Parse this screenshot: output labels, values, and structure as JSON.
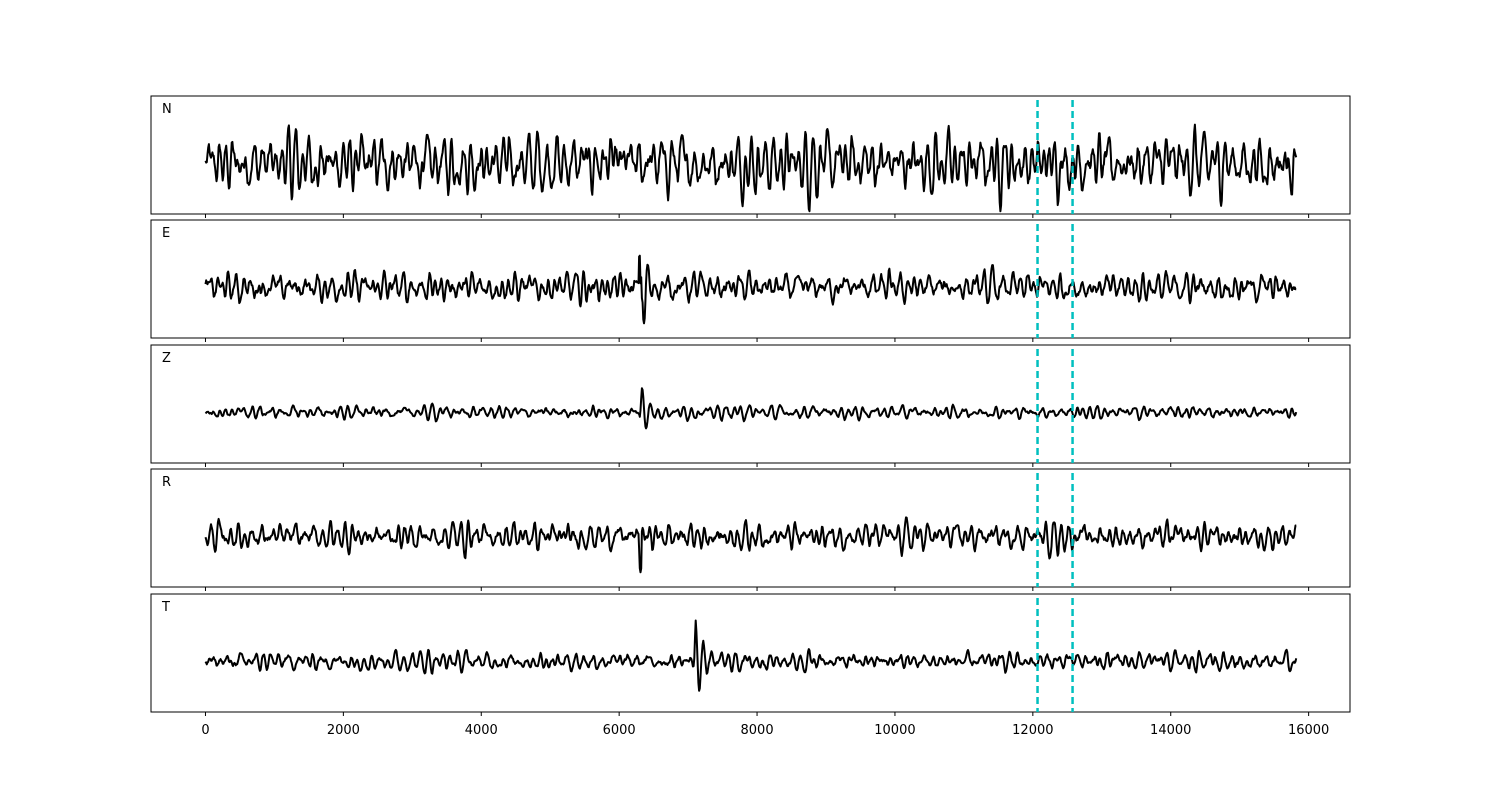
{
  "chart_data": {
    "type": "line",
    "title": "",
    "xlabel": "",
    "ylabel": "",
    "xlim": [
      -790,
      16600
    ],
    "x_end": 15825,
    "xticks": [
      0,
      2000,
      4000,
      6000,
      8000,
      10000,
      12000,
      14000,
      16000
    ],
    "xtick_labels": [
      "0",
      "2000",
      "4000",
      "6000",
      "8000",
      "10000",
      "12000",
      "14000",
      "16000"
    ],
    "grid": false,
    "shared_x": true,
    "panels": [
      {
        "label": "N",
        "amplitude": 1.0,
        "burst_x": null
      },
      {
        "label": "E",
        "amplitude": 0.75,
        "burst_x": 6320
      },
      {
        "label": "Z",
        "amplitude": 0.5,
        "burst_x": 6320
      },
      {
        "label": "R",
        "amplitude": 0.75,
        "burst_x": 6320
      },
      {
        "label": "T",
        "amplitude": 0.85,
        "burst_x": 7100
      }
    ],
    "vertical_markers": [
      {
        "x": 12068,
        "style": "dashed",
        "color": "#00bfbf"
      },
      {
        "x": 12576,
        "style": "dashed",
        "color": "#00bfbf"
      }
    ],
    "trace_color": "#000000"
  }
}
